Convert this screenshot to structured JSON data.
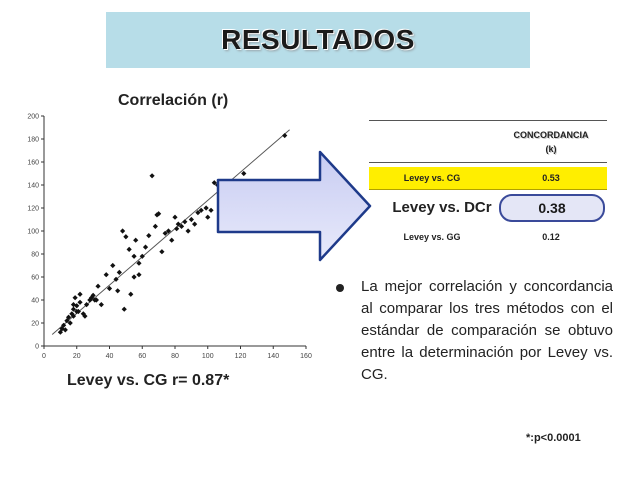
{
  "slide": {
    "title": "RESULTADOS",
    "subtitle": "Correlación (r)",
    "left_caption": "Levey vs. CG  r= 0.87*",
    "bullet_text": "La mejor correlación y concordancia al comparar los tres métodos con el estándar de comparación se obtuvo entre la determinación por Levey vs. CG.",
    "footnote": "*:p<0.0001"
  },
  "table": {
    "header_line1": "CONCORDANCIA",
    "header_line2": "(k)",
    "rows": [
      {
        "label": "Levey vs. CG",
        "value": "0.53"
      },
      {
        "label": "Levey vs. DCr",
        "value": "0.38"
      },
      {
        "label": "Levey vs. GG",
        "value": "0.12"
      }
    ],
    "highlight_color": "#ffee00"
  },
  "chart_data": {
    "type": "scatter",
    "title": "",
    "xlabel": "",
    "ylabel": "",
    "xlim": [
      0,
      160
    ],
    "ylim": [
      0,
      200
    ],
    "x_ticks": [
      "0",
      "20",
      "40",
      "60",
      "80",
      "100",
      "120",
      "140",
      "160"
    ],
    "y_ticks": [
      "0",
      "20",
      "40",
      "60",
      "80",
      "100",
      "120",
      "140",
      "160",
      "180",
      "200"
    ],
    "grid": false,
    "trendline": [
      [
        5,
        10
      ],
      [
        150,
        188
      ]
    ],
    "points": [
      [
        10,
        12
      ],
      [
        11,
        15
      ],
      [
        12,
        18
      ],
      [
        13,
        14
      ],
      [
        14,
        22
      ],
      [
        15,
        25
      ],
      [
        16,
        20
      ],
      [
        17,
        28
      ],
      [
        18,
        26
      ],
      [
        18,
        32
      ],
      [
        18,
        36
      ],
      [
        19,
        42
      ],
      [
        20,
        30
      ],
      [
        20,
        35
      ],
      [
        21,
        30
      ],
      [
        22,
        38
      ],
      [
        22,
        45
      ],
      [
        24,
        28
      ],
      [
        25,
        26
      ],
      [
        26,
        36
      ],
      [
        28,
        40
      ],
      [
        29,
        42
      ],
      [
        30,
        44
      ],
      [
        31,
        40
      ],
      [
        32,
        40
      ],
      [
        33,
        52
      ],
      [
        35,
        36
      ],
      [
        38,
        62
      ],
      [
        40,
        50
      ],
      [
        42,
        70
      ],
      [
        44,
        58
      ],
      [
        45,
        48
      ],
      [
        46,
        64
      ],
      [
        48,
        100
      ],
      [
        49,
        32
      ],
      [
        50,
        95
      ],
      [
        52,
        84
      ],
      [
        53,
        45
      ],
      [
        55,
        60
      ],
      [
        55,
        78
      ],
      [
        56,
        92
      ],
      [
        58,
        62
      ],
      [
        58,
        72
      ],
      [
        60,
        78
      ],
      [
        62,
        86
      ],
      [
        64,
        96
      ],
      [
        66,
        148
      ],
      [
        68,
        104
      ],
      [
        69,
        114
      ],
      [
        70,
        115
      ],
      [
        72,
        82
      ],
      [
        74,
        98
      ],
      [
        76,
        100
      ],
      [
        78,
        92
      ],
      [
        80,
        112
      ],
      [
        81,
        102
      ],
      [
        82,
        106
      ],
      [
        84,
        104
      ],
      [
        86,
        108
      ],
      [
        88,
        100
      ],
      [
        90,
        110
      ],
      [
        92,
        106
      ],
      [
        94,
        116
      ],
      [
        96,
        118
      ],
      [
        99,
        120
      ],
      [
        100,
        112
      ],
      [
        102,
        118
      ],
      [
        104,
        142
      ],
      [
        106,
        140
      ],
      [
        110,
        136
      ],
      [
        112,
        128
      ],
      [
        118,
        134
      ],
      [
        122,
        150
      ],
      [
        147,
        183
      ]
    ]
  }
}
